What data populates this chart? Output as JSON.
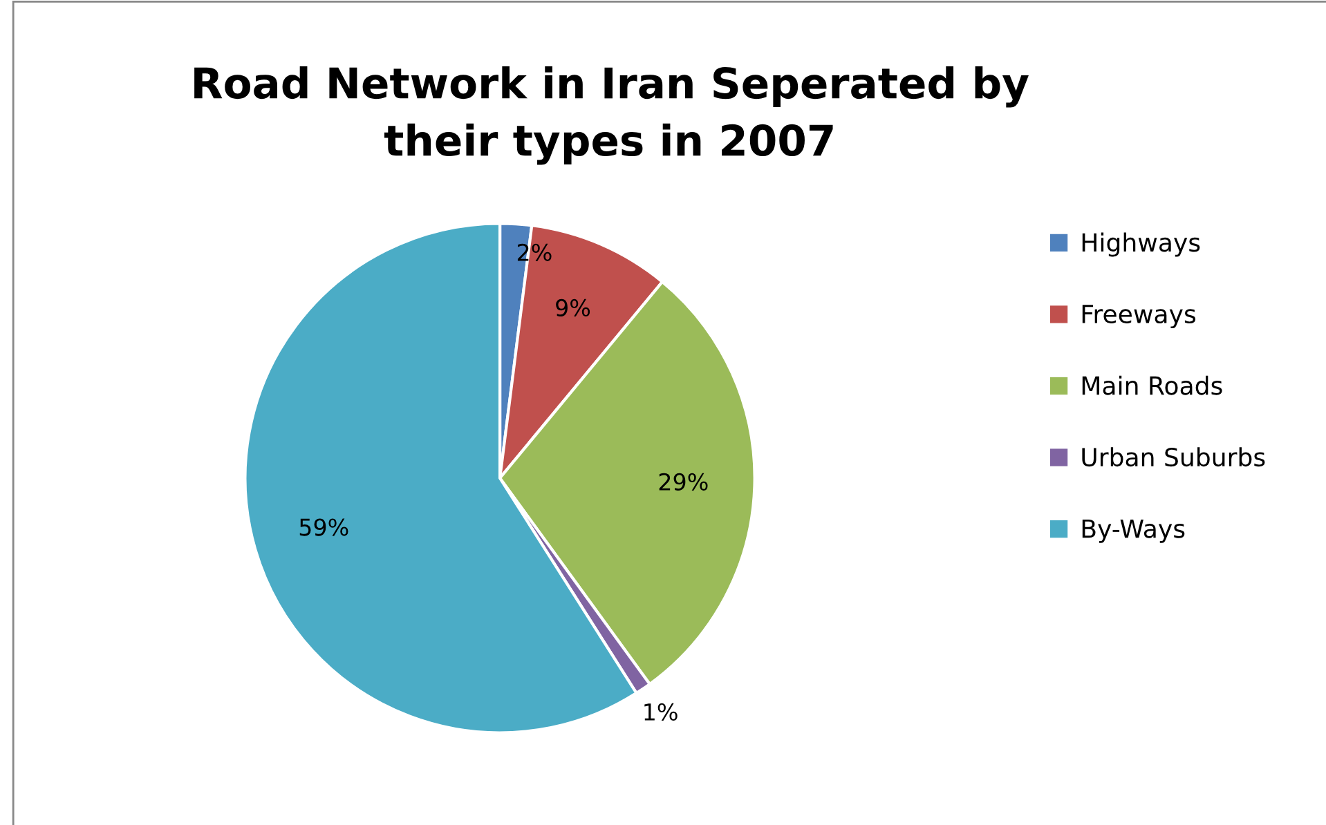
{
  "chart_data": {
    "type": "pie",
    "title": "Road Network in Iran Seperated by\ntheir types in 2007",
    "categories": [
      "Highways",
      "Freeways",
      "Main Roads",
      "Urban Suburbs",
      "By-Ways"
    ],
    "values": [
      2,
      9,
      29,
      1,
      59
    ],
    "colors": [
      "#4f81bd",
      "#c0504d",
      "#9bbb59",
      "#8064a2",
      "#4bacc6"
    ],
    "value_labels": [
      "2%",
      "9%",
      "29%",
      "1%",
      "59%"
    ],
    "legend": "right"
  }
}
